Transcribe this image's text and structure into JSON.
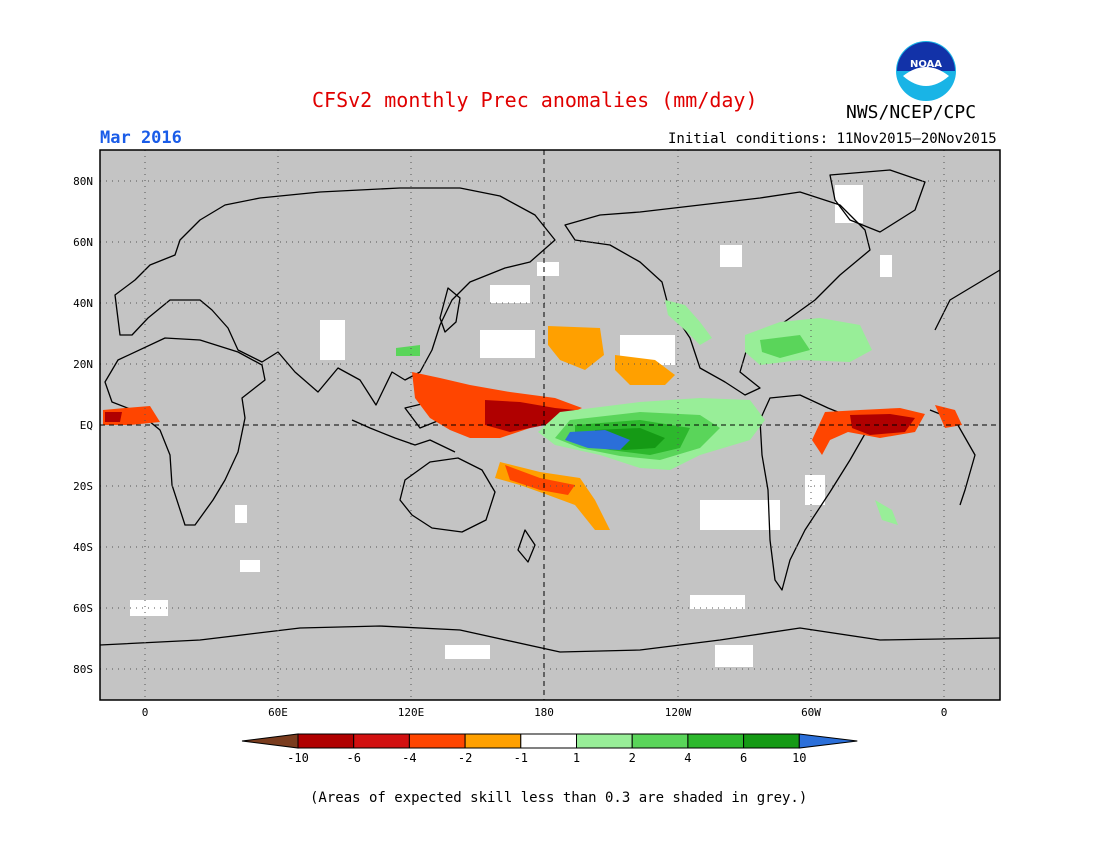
{
  "header": {
    "title": "CFSv2 monthly Prec anomalies (mm/day)",
    "target_month": "Mar 2016",
    "initial_conditions": "Initial conditions: 11Nov2015–20Nov2015",
    "agency": "NWS/NCEP/CPC",
    "logo_text": "NOAA"
  },
  "map": {
    "projection": "equirectangular",
    "lon_range": [
      -20,
      380
    ],
    "lat_range": [
      -90,
      90
    ],
    "background_color": "#c4c4c4",
    "lat_labels": [
      "80N",
      "60N",
      "40N",
      "20N",
      "EQ",
      "20S",
      "40S",
      "60S",
      "80S"
    ],
    "lon_labels": [
      "0",
      "60E",
      "120E",
      "180",
      "120W",
      "60W",
      "0"
    ],
    "dashed_reference_lines": [
      "Equator",
      "180"
    ]
  },
  "colorbar": {
    "labels": [
      "-10",
      "-6",
      "-4",
      "-2",
      "-1",
      "1",
      "2",
      "4",
      "6",
      "10"
    ],
    "colors": [
      "#7a3c1e",
      "#b00000",
      "#d21010",
      "#ff4500",
      "#ffa000",
      "#ffffff",
      "#98ee98",
      "#5ad55a",
      "#2db82d",
      "#159a15",
      "#2b6fd9"
    ]
  },
  "footnote": "(Areas of expected skill less than 0.3 are shaded in grey.)"
}
